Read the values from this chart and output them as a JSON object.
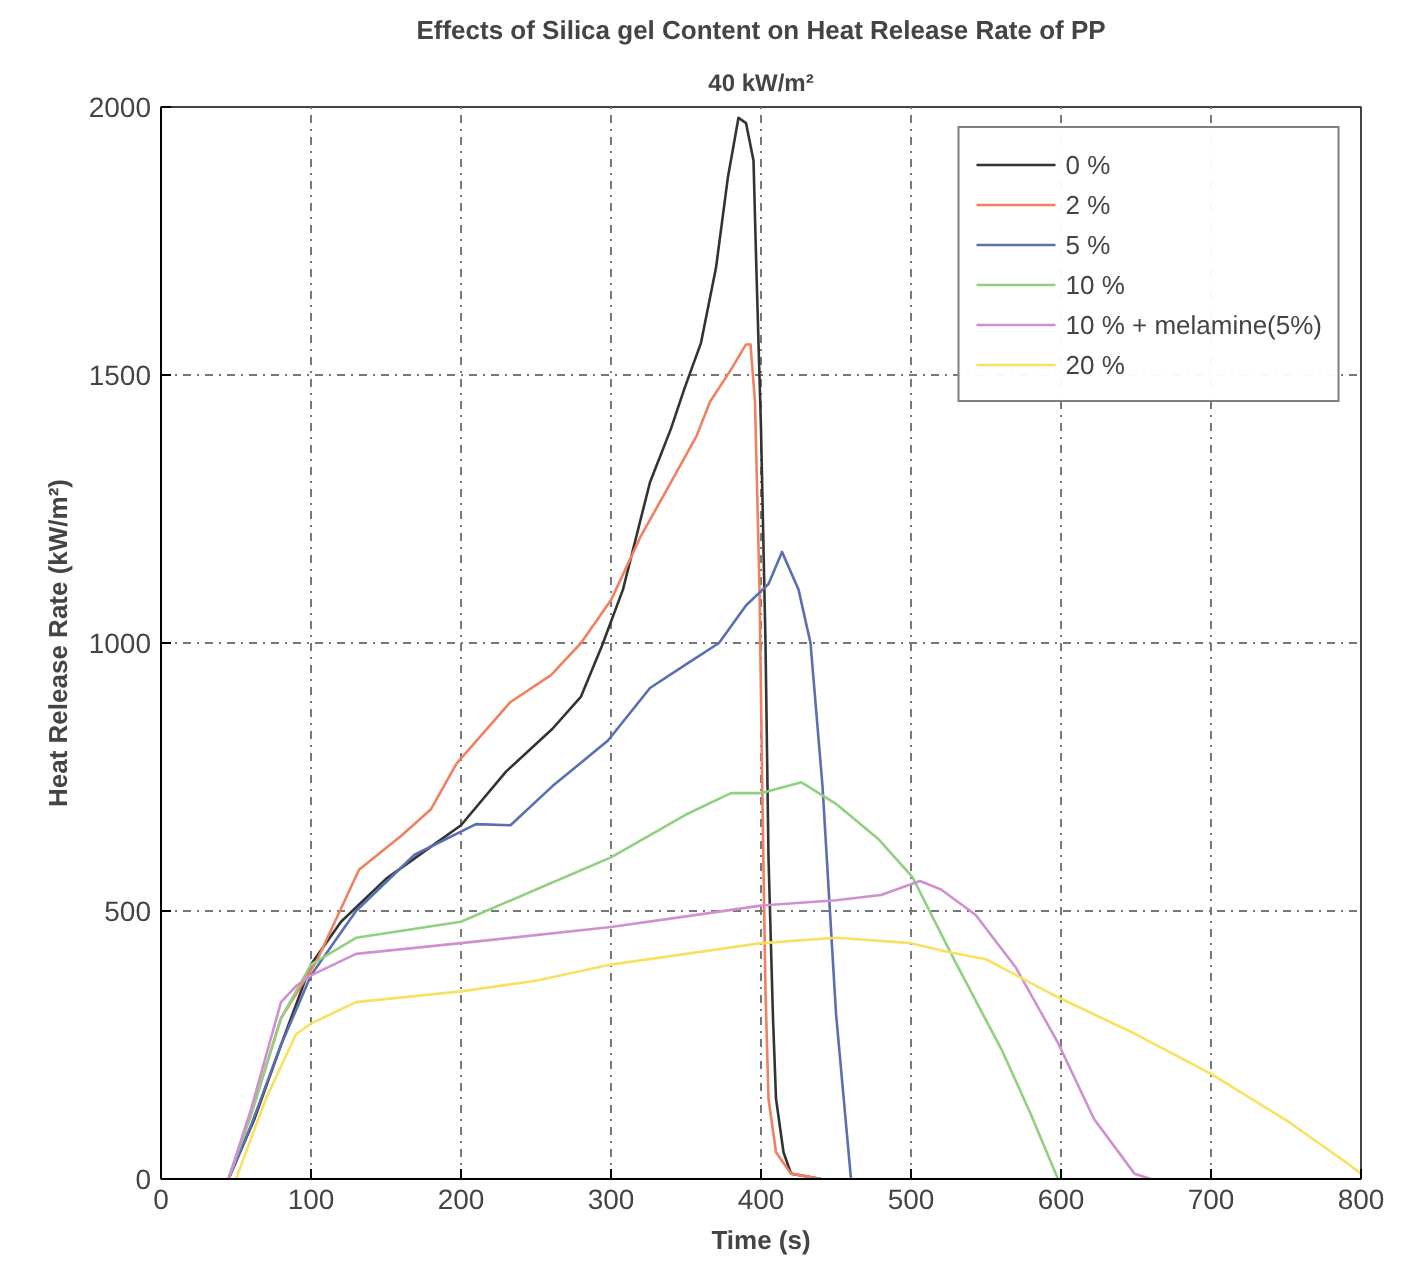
{
  "chart_data": {
    "type": "line",
    "title": "Effects of Silica gel Content on Heat Release Rate of PP",
    "subtitle": "40 kW/m²",
    "xlabel": "Time (s)",
    "ylabel": "Heat Release Rate (kW/m²)",
    "xlim": [
      0,
      800
    ],
    "ylim": [
      0,
      2000
    ],
    "xticks": [
      0,
      100,
      200,
      300,
      400,
      500,
      600,
      700,
      800
    ],
    "yticks": [
      0,
      500,
      1000,
      1500,
      2000
    ],
    "grid": true,
    "legend": "top right",
    "line_style": "solid",
    "marker": "none",
    "series": [
      {
        "name": "0 %",
        "color": "#333333",
        "x": [
          45,
          62,
          80,
          100,
          120,
          150,
          180,
          200,
          230,
          261,
          280,
          294,
          308,
          326,
          340,
          349,
          360,
          370,
          378,
          385,
          390,
          395,
          397,
          400,
          403,
          405,
          408,
          410,
          415,
          420,
          440
        ],
        "values": [
          0,
          110,
          250,
          400,
          480,
          560,
          620,
          660,
          760,
          840,
          900,
          995,
          1100,
          1300,
          1400,
          1475,
          1560,
          1700,
          1870,
          1980,
          1970,
          1900,
          1690,
          1400,
          1000,
          600,
          300,
          150,
          50,
          10,
          0
        ]
      },
      {
        "name": "2 %",
        "color": "#f08060",
        "x": [
          45,
          60,
          80,
          104,
          132,
          160,
          180,
          197,
          233,
          260,
          280,
          300,
          320,
          340,
          357,
          366,
          380,
          390,
          393,
          396,
          399,
          401,
          403,
          405,
          410,
          420,
          440
        ],
        "values": [
          0,
          120,
          300,
          408,
          577,
          640,
          690,
          775,
          890,
          940,
          1000,
          1080,
          1200,
          1300,
          1386,
          1450,
          1510,
          1557,
          1557,
          1450,
          1100,
          700,
          350,
          150,
          50,
          10,
          0
        ]
      },
      {
        "name": "5 %",
        "color": "#5a6fb0",
        "x": [
          45,
          60,
          80,
          100,
          130,
          169,
          210,
          233,
          261,
          298,
          326,
          350,
          372,
          390,
          405,
          414,
          425,
          433,
          441,
          450,
          460
        ],
        "values": [
          0,
          100,
          250,
          380,
          500,
          605,
          662,
          660,
          733,
          818,
          916,
          960,
          1000,
          1070,
          1110,
          1170,
          1100,
          1000,
          733,
          309,
          0
        ]
      },
      {
        "name": "10 %",
        "color": "#90d080",
        "x": [
          45,
          60,
          80,
          100,
          130,
          200,
          250,
          300,
          350,
          380,
          400,
          427,
          450,
          478,
          501,
          529,
          561,
          580,
          598
        ],
        "values": [
          0,
          120,
          300,
          400,
          450,
          480,
          540,
          600,
          680,
          720,
          720,
          740,
          700,
          635,
          563,
          408,
          238,
          120,
          0
        ]
      },
      {
        "name": "10 % + melamine(5%)",
        "color": "#d090d0",
        "x": [
          45,
          60,
          80,
          90,
          100,
          130,
          200,
          300,
          350,
          400,
          450,
          480,
          506,
          520,
          543,
          570,
          598,
          622,
          649,
          660
        ],
        "values": [
          0,
          130,
          330,
          360,
          380,
          420,
          440,
          470,
          490,
          510,
          520,
          530,
          556,
          540,
          493,
          394,
          254,
          112,
          10,
          0
        ]
      },
      {
        "name": "20 %",
        "color": "#f8e060",
        "x": [
          50,
          70,
          90,
          100,
          130,
          200,
          250,
          300,
          350,
          400,
          450,
          500,
          524,
          550,
          598,
          650,
          700,
          750,
          792,
          800
        ],
        "values": [
          0,
          150,
          270,
          290,
          330,
          350,
          370,
          400,
          420,
          440,
          450,
          440,
          424,
          410,
          339,
          270,
          196,
          110,
          27,
          10
        ]
      }
    ]
  }
}
